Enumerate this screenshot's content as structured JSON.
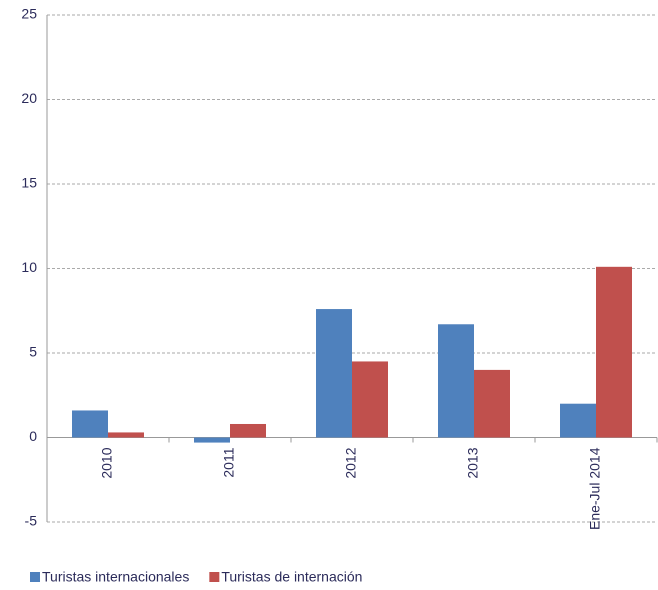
{
  "chart_data": {
    "type": "bar",
    "categories": [
      "2010",
      "2011",
      "2012",
      "2013",
      "Ene-Jul 2014"
    ],
    "series": [
      {
        "name": "Turistas internacionales",
        "color": "#4f81bd",
        "values": [
          1.6,
          -0.3,
          7.6,
          6.7,
          2.0
        ]
      },
      {
        "name": "Turistas de internación",
        "color": "#c0504d",
        "values": [
          0.3,
          0.8,
          4.5,
          4.0,
          10.1
        ]
      }
    ],
    "ylim": [
      -5,
      25
    ],
    "yticks": [
      -5,
      0,
      5,
      10,
      15,
      20,
      25
    ],
    "grid": true
  }
}
